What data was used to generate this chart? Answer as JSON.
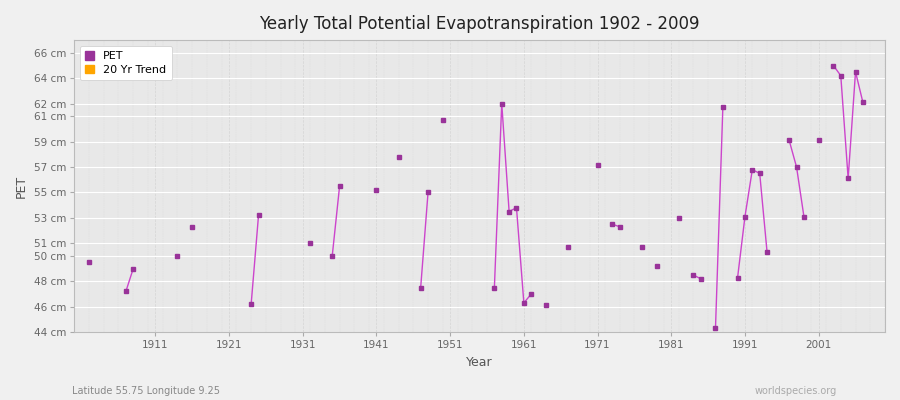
{
  "title": "Yearly Total Potential Evapotranspiration 1902 - 2009",
  "xlabel": "Year",
  "ylabel": "PET",
  "subtitle": "Latitude 55.75 Longitude 9.25",
  "watermark": "worldspecies.org",
  "background_color": "#f0f0f0",
  "plot_bg_color": "#e8e8e8",
  "line_color": "#cc44cc",
  "marker_color": "#993399",
  "trend_color": "#ffa500",
  "ylim": [
    44,
    67
  ],
  "xlim": [
    1900,
    2010
  ],
  "ytick_values": [
    44,
    46,
    48,
    50,
    51,
    53,
    55,
    57,
    59,
    61,
    62,
    64,
    66
  ],
  "ytick_labels": [
    "44 cm",
    "46 cm",
    "48 cm",
    "50 cm",
    "51 cm",
    "53 cm",
    "55 cm",
    "57 cm",
    "59 cm",
    "61 cm",
    "62 cm",
    "64 cm",
    "66 cm"
  ],
  "xtick_values": [
    1911,
    1921,
    1931,
    1941,
    1951,
    1961,
    1971,
    1981,
    1991,
    2001
  ],
  "pet_data": [
    [
      1902,
      49.5
    ],
    [
      1907,
      47.2
    ],
    [
      1908,
      49.0
    ],
    [
      1914,
      50.0
    ],
    [
      1916,
      52.3
    ],
    [
      1924,
      46.2
    ],
    [
      1925,
      53.2
    ],
    [
      1932,
      51.0
    ],
    [
      1935,
      50.0
    ],
    [
      1936,
      55.5
    ],
    [
      1941,
      55.2
    ],
    [
      1944,
      57.8
    ],
    [
      1947,
      47.5
    ],
    [
      1948,
      55.0
    ],
    [
      1950,
      60.7
    ],
    [
      1957,
      47.5
    ],
    [
      1958,
      62.0
    ],
    [
      1959,
      53.5
    ],
    [
      1960,
      53.8
    ],
    [
      1961,
      46.3
    ],
    [
      1962,
      47.0
    ],
    [
      1964,
      46.1
    ],
    [
      1967,
      50.7
    ],
    [
      1971,
      57.2
    ],
    [
      1973,
      52.5
    ],
    [
      1974,
      52.3
    ],
    [
      1977,
      50.7
    ],
    [
      1979,
      49.2
    ],
    [
      1982,
      53.0
    ],
    [
      1984,
      48.5
    ],
    [
      1985,
      48.2
    ],
    [
      1987,
      44.3
    ],
    [
      1988,
      61.7
    ],
    [
      1990,
      48.3
    ],
    [
      1991,
      53.1
    ],
    [
      1992,
      56.8
    ],
    [
      1993,
      56.5
    ],
    [
      1994,
      50.3
    ],
    [
      1997,
      59.1
    ],
    [
      1998,
      57.0
    ],
    [
      1999,
      53.1
    ],
    [
      2001,
      59.1
    ],
    [
      2003,
      65.0
    ],
    [
      2004,
      64.2
    ],
    [
      2005,
      56.1
    ],
    [
      2006,
      64.5
    ],
    [
      2007,
      62.1
    ]
  ]
}
